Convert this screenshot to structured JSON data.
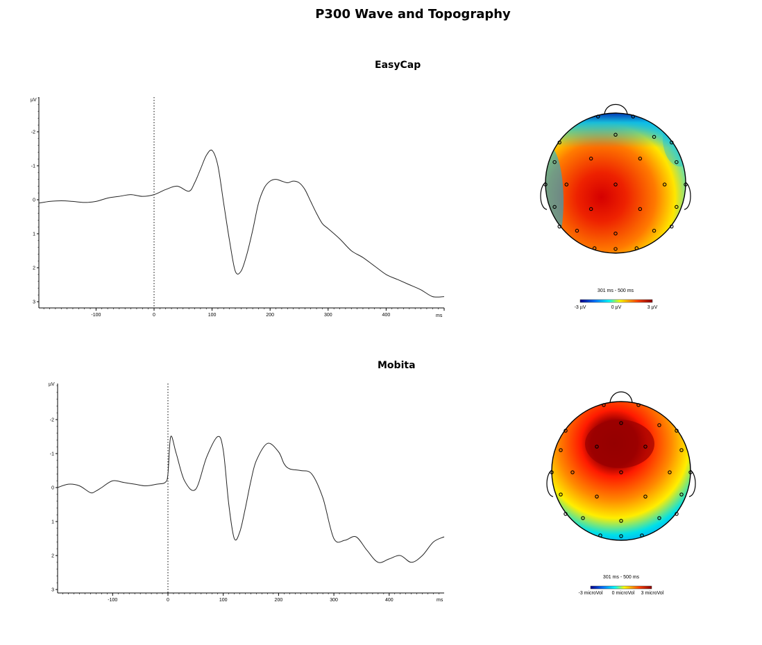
{
  "title": "P300 Wave and Topography",
  "chart_data": [
    {
      "type": "line",
      "title": "EasyCap",
      "ylabel": "µV",
      "xlabel": "ms",
      "y_inverted": true,
      "xlim": [
        -200,
        500
      ],
      "ylim": [
        -3,
        3
      ],
      "x_ticks": [
        "-100",
        "0",
        "100",
        "200",
        "300",
        "400"
      ],
      "y_ticks": [
        "-2",
        "-1",
        "0",
        "1",
        "2",
        "3"
      ],
      "stimulus_marker_x": 0,
      "series": [
        {
          "x": [
            -200,
            -180,
            -160,
            -140,
            -120,
            -100,
            -80,
            -60,
            -40,
            -20,
            0,
            20,
            40,
            60,
            70,
            80,
            90,
            100,
            110,
            120,
            130,
            140,
            150,
            160,
            170,
            180,
            190,
            200,
            210,
            220,
            230,
            240,
            250,
            260,
            270,
            280,
            290,
            300,
            320,
            340,
            360,
            380,
            400,
            420,
            440,
            460,
            480,
            500
          ],
          "values": [
            0.1,
            0.05,
            0.03,
            0.05,
            0.08,
            0.05,
            -0.05,
            -0.1,
            -0.15,
            -0.1,
            -0.15,
            -0.3,
            -0.4,
            -0.25,
            -0.5,
            -0.9,
            -1.3,
            -1.45,
            -1.0,
            0.1,
            1.2,
            2.1,
            2.1,
            1.6,
            0.9,
            0.1,
            -0.35,
            -0.55,
            -0.6,
            -0.55,
            -0.5,
            -0.55,
            -0.5,
            -0.3,
            0.05,
            0.4,
            0.7,
            0.85,
            1.15,
            1.5,
            1.7,
            1.95,
            2.2,
            2.35,
            2.5,
            2.65,
            2.85,
            2.85
          ]
        }
      ],
      "topomap": {
        "label": "301 ms - 500 ms",
        "colorbar": [
          "-3 µV",
          "0 µV",
          "3 µV"
        ]
      }
    },
    {
      "type": "line",
      "title": "Mobita",
      "ylabel": "µV",
      "xlabel": "ms",
      "y_inverted": true,
      "xlim": [
        -200,
        500
      ],
      "ylim": [
        -3,
        3
      ],
      "x_ticks": [
        "-100",
        "0",
        "100",
        "200",
        "300",
        "400"
      ],
      "y_ticks": [
        "-2",
        "-1",
        "0",
        "1",
        "2",
        "3"
      ],
      "stimulus_marker_x": 0,
      "series": [
        {
          "x": [
            -200,
            -180,
            -160,
            -140,
            -130,
            -120,
            -100,
            -80,
            -60,
            -40,
            -20,
            -5,
            0,
            5,
            15,
            30,
            50,
            70,
            90,
            100,
            110,
            120,
            130,
            140,
            150,
            160,
            180,
            200,
            210,
            220,
            240,
            260,
            280,
            300,
            320,
            340,
            360,
            380,
            400,
            420,
            440,
            460,
            480,
            500
          ],
          "values": [
            0.0,
            -0.1,
            -0.05,
            0.15,
            0.1,
            0.0,
            -0.2,
            -0.15,
            -0.1,
            -0.05,
            -0.1,
            -0.15,
            -0.4,
            -1.5,
            -1.0,
            -0.2,
            0.05,
            -0.9,
            -1.5,
            -1.1,
            0.5,
            1.5,
            1.3,
            0.6,
            -0.2,
            -0.8,
            -1.3,
            -1.05,
            -0.7,
            -0.55,
            -0.5,
            -0.4,
            0.3,
            1.5,
            1.55,
            1.45,
            1.85,
            2.2,
            2.1,
            2.0,
            2.2,
            2.0,
            1.6,
            1.45
          ]
        }
      ],
      "topomap": {
        "label": "301 ms - 500 ms",
        "colorbar": [
          "-3 microVol",
          "0 microVol",
          "3 microVol"
        ]
      }
    }
  ]
}
